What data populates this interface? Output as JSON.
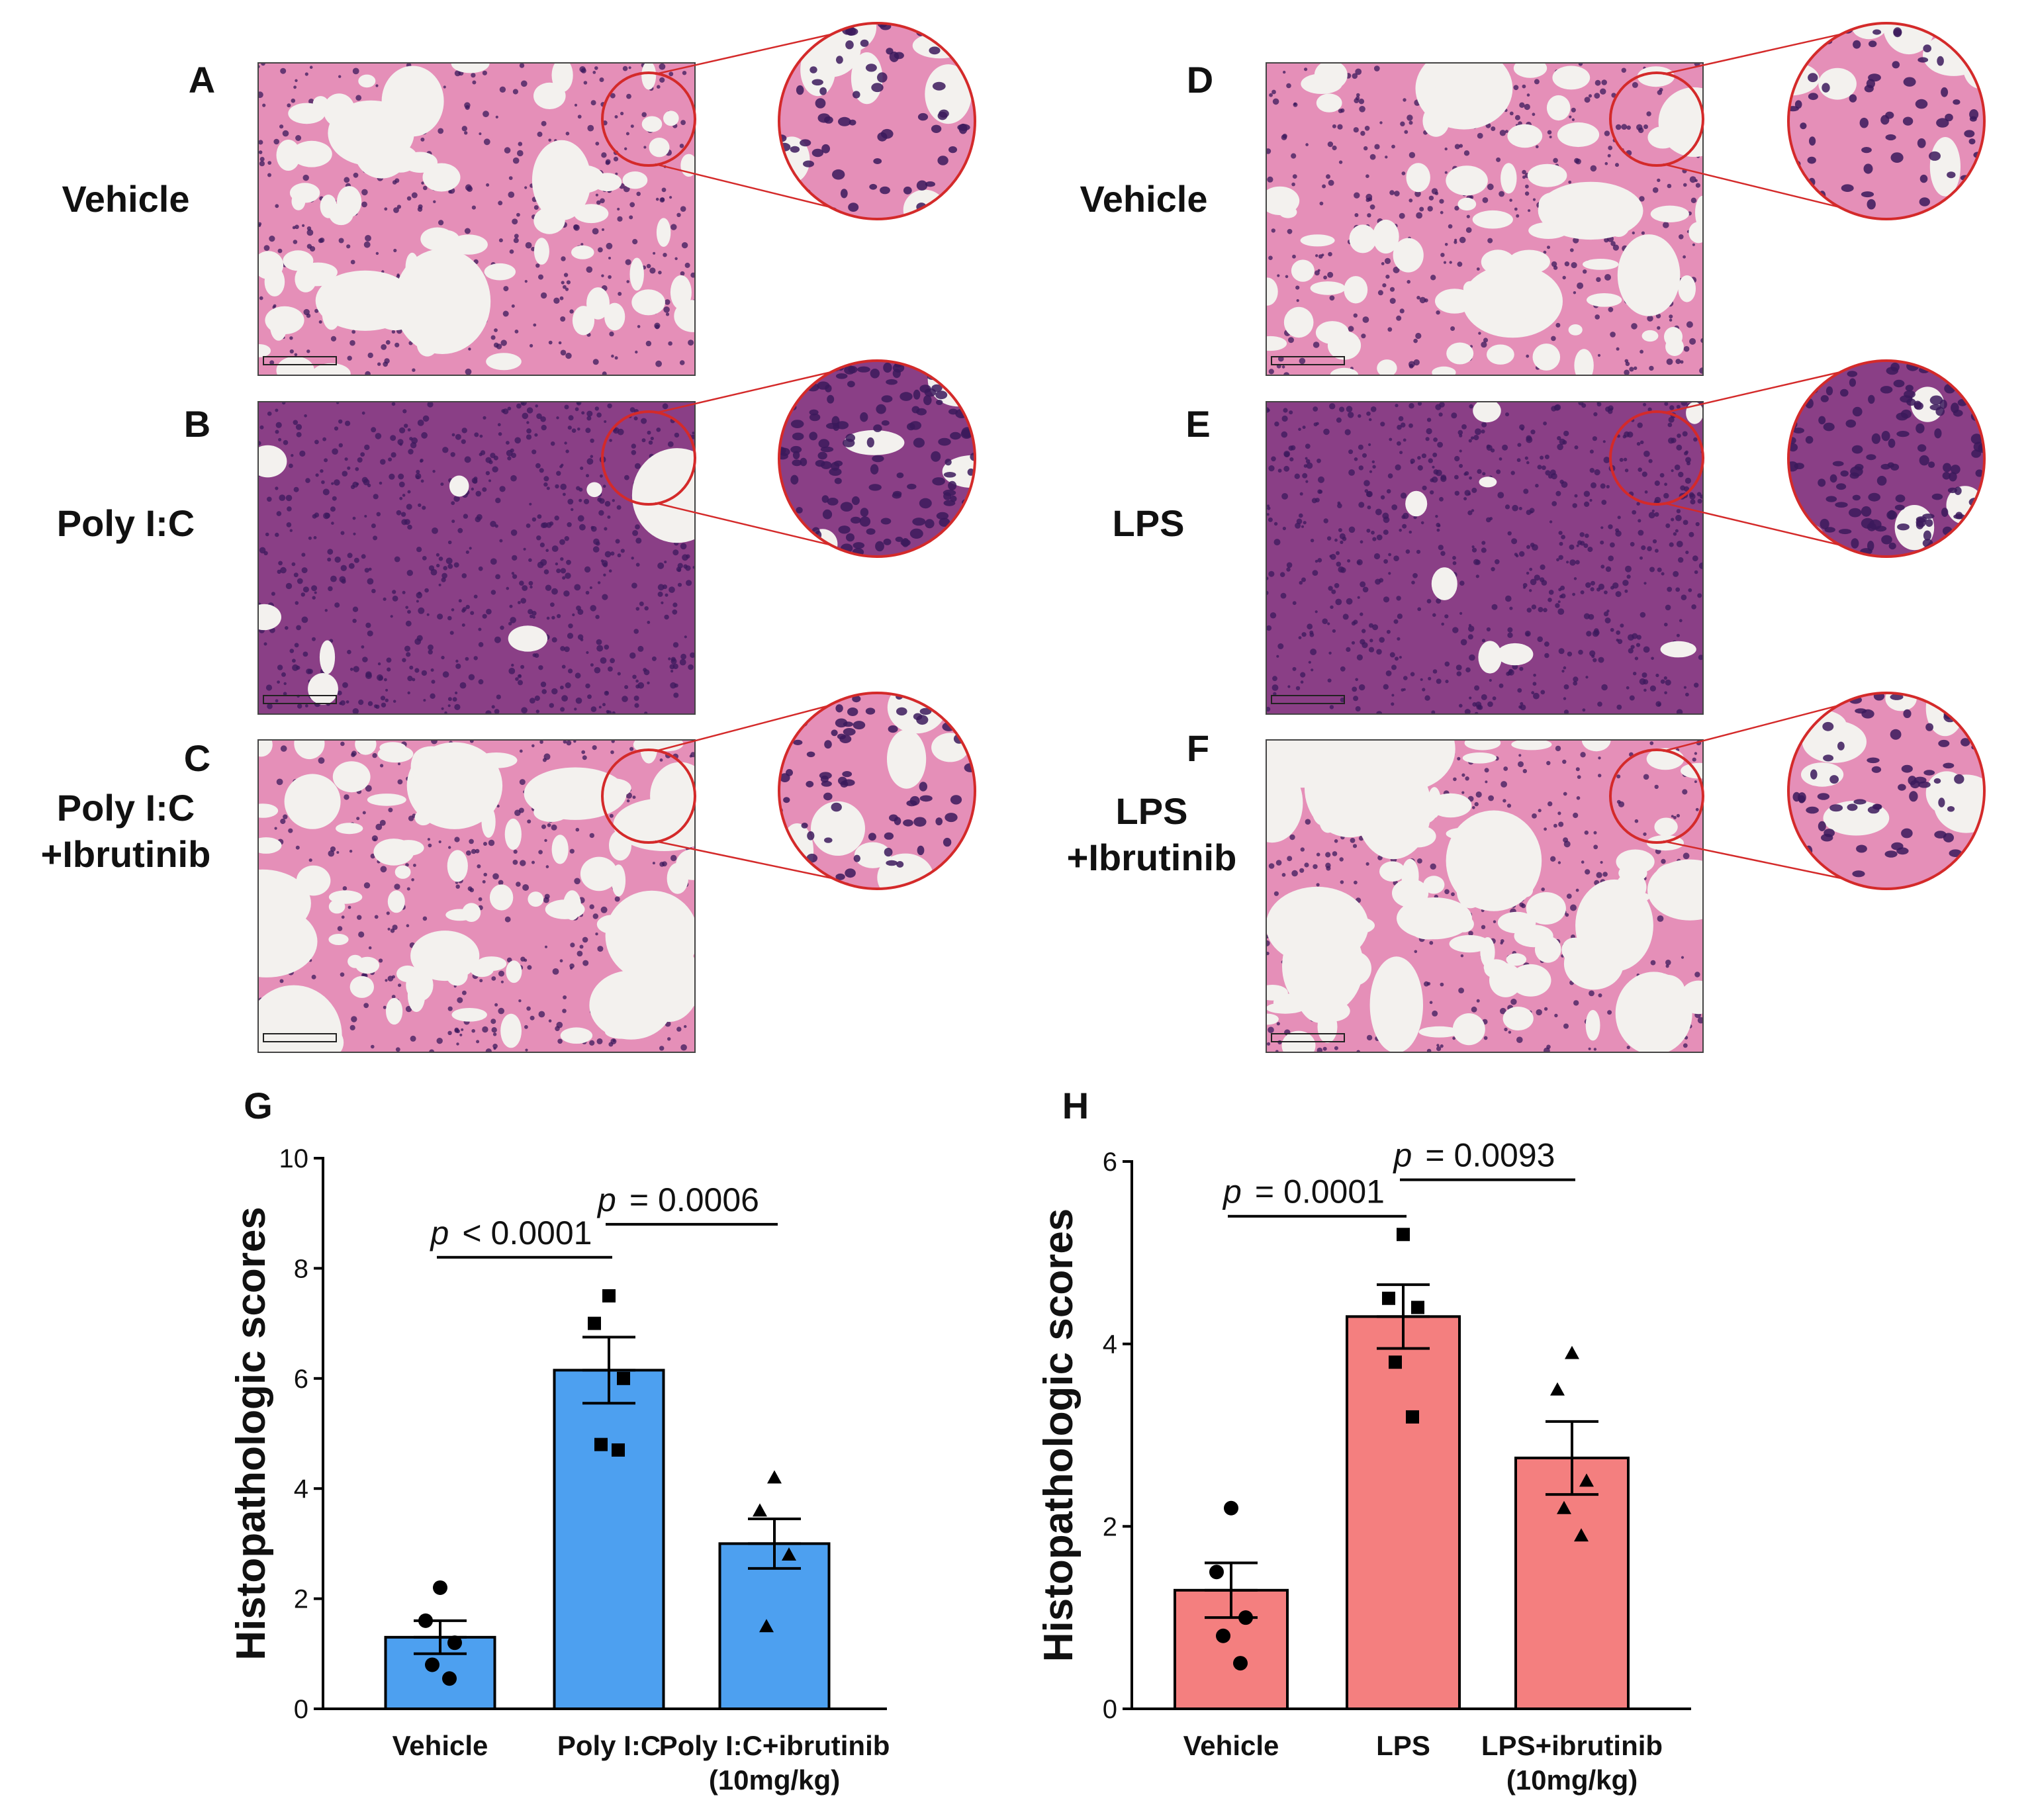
{
  "panels": [
    {
      "letter": "A",
      "group_lines": [
        "Vehicle"
      ],
      "tone": "normal"
    },
    {
      "letter": "B",
      "group_lines": [
        "Poly I:C"
      ],
      "tone": "dense"
    },
    {
      "letter": "C",
      "group_lines": [
        "Poly I:C",
        "+Ibrutinib"
      ],
      "tone": "mid"
    },
    {
      "letter": "D",
      "group_lines": [
        "Vehicle"
      ],
      "tone": "normal"
    },
    {
      "letter": "E",
      "group_lines": [
        "LPS"
      ],
      "tone": "dense"
    },
    {
      "letter": "F",
      "group_lines": [
        "LPS",
        "+Ibrutinib"
      ],
      "tone": "mid"
    }
  ],
  "colors": {
    "tissue_pink": "#e58fb8",
    "tissue_dense": "#8a3f86",
    "nuclei": "#3b1a5c",
    "lumen": "#f3f1ee",
    "zoom_circle": "#d42a2a",
    "bar_blue": "#4da0f0",
    "bar_red": "#f47f7f"
  },
  "chart_data": [
    {
      "letter": "G",
      "type": "bar",
      "ylabel": "Histopathologic scores",
      "ylim": [
        0,
        10
      ],
      "yticks": [
        0,
        2,
        4,
        6,
        8,
        10
      ],
      "categories": [
        {
          "lines": [
            "Vehicle"
          ]
        },
        {
          "lines": [
            "Poly I:C"
          ]
        },
        {
          "lines": [
            "Poly I:C+ibrutinib",
            "(10mg/kg)"
          ]
        }
      ],
      "values": [
        1.3,
        6.15,
        3.0
      ],
      "sem": [
        0.3,
        0.6,
        0.45
      ],
      "points": [
        [
          2.2,
          1.6,
          1.2,
          0.8,
          0.55
        ],
        [
          7.5,
          7.0,
          6.0,
          4.8,
          4.7
        ],
        [
          4.2,
          3.6,
          2.8,
          1.5
        ]
      ],
      "markers": [
        "circle",
        "square",
        "triangle"
      ],
      "color": "#4da0f0",
      "comparisons": [
        {
          "from": 0,
          "to": 1,
          "y": 8.2,
          "p": "p",
          "op": "<",
          "value": "0.0001"
        },
        {
          "from": 1,
          "to": 2,
          "y": 8.8,
          "p": "p",
          "op": "=",
          "value": "0.0006"
        }
      ]
    },
    {
      "letter": "H",
      "type": "bar",
      "ylabel": "Histopathologic scores",
      "ylim": [
        0,
        6
      ],
      "yticks": [
        0,
        2,
        4,
        6
      ],
      "categories": [
        {
          "lines": [
            "Vehicle"
          ]
        },
        {
          "lines": [
            "LPS"
          ]
        },
        {
          "lines": [
            "LPS+ibrutinib",
            "(10mg/kg)"
          ]
        }
      ],
      "values": [
        1.3,
        4.3,
        2.75
      ],
      "sem": [
        0.3,
        0.35,
        0.4
      ],
      "points": [
        [
          2.2,
          1.5,
          1.0,
          0.8,
          0.5
        ],
        [
          5.2,
          4.5,
          4.4,
          3.8,
          3.2
        ],
        [
          3.9,
          3.5,
          2.5,
          2.2,
          1.9
        ]
      ],
      "markers": [
        "circle",
        "square",
        "triangle"
      ],
      "color": "#f47f7f",
      "comparisons": [
        {
          "from": 0,
          "to": 1,
          "y": 5.4,
          "p": "p",
          "op": "=",
          "value": "0.0001"
        },
        {
          "from": 1,
          "to": 2,
          "y": 5.8,
          "p": "p",
          "op": "=",
          "value": "0.0093"
        }
      ]
    }
  ]
}
